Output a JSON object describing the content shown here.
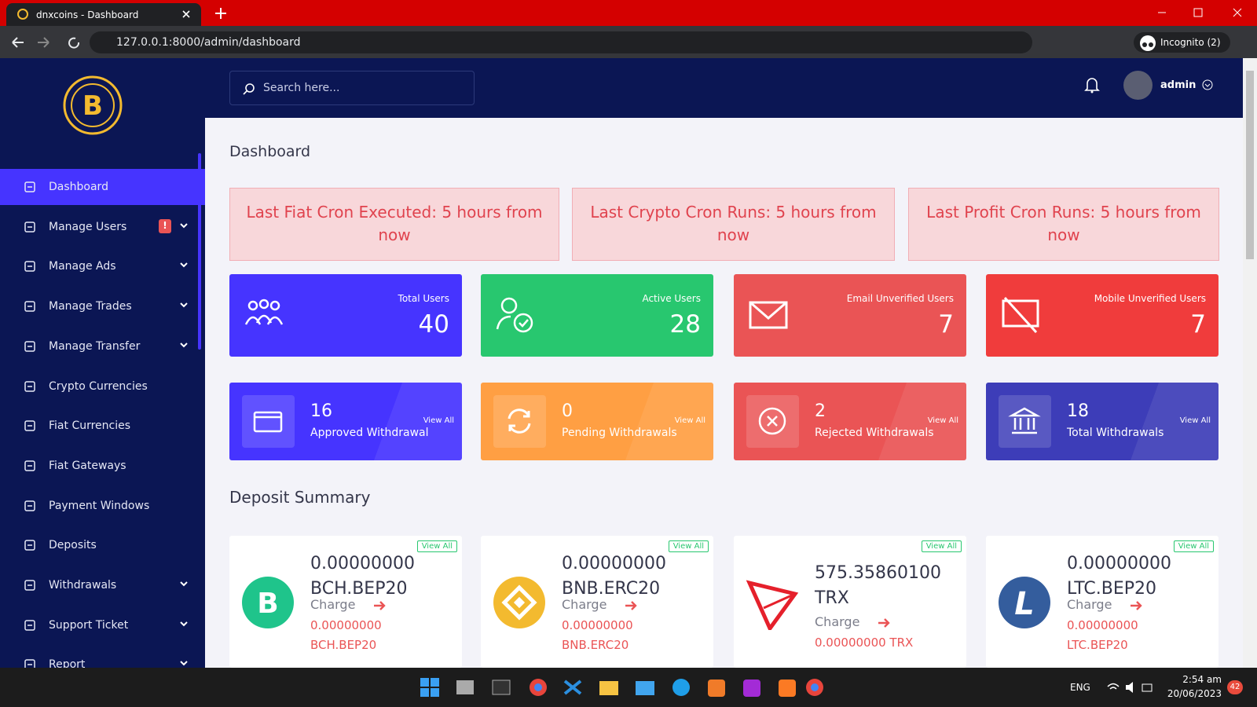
{
  "browser": {
    "tab_title": "dnxcoins - Dashboard",
    "url": "127.0.0.1:8000/admin/dashboard",
    "profile": "Incognito (2)"
  },
  "sidebar": {
    "badge": "!",
    "items": [
      {
        "label": "Dashboard",
        "active": true
      },
      {
        "label": "Manage Users",
        "submenu": true,
        "badge": true
      },
      {
        "label": "Manage Ads",
        "submenu": true
      },
      {
        "label": "Manage Trades",
        "submenu": true
      },
      {
        "label": "Manage Transfer",
        "submenu": true
      },
      {
        "label": "Crypto Currencies"
      },
      {
        "label": "Fiat Currencies"
      },
      {
        "label": "Fiat Gateways"
      },
      {
        "label": "Payment Windows"
      },
      {
        "label": "Deposits"
      },
      {
        "label": "Withdrawals",
        "submenu": true
      },
      {
        "label": "Support Ticket",
        "submenu": true
      },
      {
        "label": "Report",
        "submenu": true
      }
    ]
  },
  "topbar": {
    "search_placeholder": "Search here...",
    "user": "admin"
  },
  "page_title": "Dashboard",
  "alerts": [
    "Last Fiat Cron Executed: 5 hours from now",
    "Last Crypto Cron Runs: 5 hours from now",
    "Last Profit Cron Runs: 5 hours from now"
  ],
  "stats": [
    {
      "label": "Total Users",
      "value": 40
    },
    {
      "label": "Active Users",
      "value": 28
    },
    {
      "label": "Email Unverified Users",
      "value": 7
    },
    {
      "label": "Mobile Unverified Users",
      "value": 7
    }
  ],
  "withdrawals": [
    {
      "value": 16,
      "label": "Approved Withdrawal",
      "link": "View All"
    },
    {
      "value": 0,
      "label": "Pending Withdrawals",
      "link": "View All"
    },
    {
      "value": 2,
      "label": "Rejected Withdrawals",
      "link": "View All"
    },
    {
      "value": 18,
      "label": "Total Withdrawals",
      "link": "View All"
    }
  ],
  "deposit_title": "Deposit Summary",
  "deposits": [
    {
      "amount": "0.00000000",
      "currency": "BCH.BEP20",
      "charge_label": "Charge",
      "charge": "0.00000000 BCH.BEP20",
      "link": "View All"
    },
    {
      "amount": "0.00000000",
      "currency": "BNB.ERC20",
      "charge_label": "Charge",
      "charge": "0.00000000 BNB.ERC20",
      "link": "View All"
    },
    {
      "amount": "575.35860100",
      "currency": "TRX",
      "charge_label": "Charge",
      "charge": "0.00000000 TRX",
      "link": "View All"
    },
    {
      "amount": "0.00000000",
      "currency": "LTC.BEP20",
      "charge_label": "Charge",
      "charge": "0.00000000 LTC.BEP20",
      "link": "View All"
    }
  ],
  "taskbar": {
    "lang": "ENG",
    "time": "2:54 am",
    "date": "20/06/2023",
    "notifications": 42
  }
}
